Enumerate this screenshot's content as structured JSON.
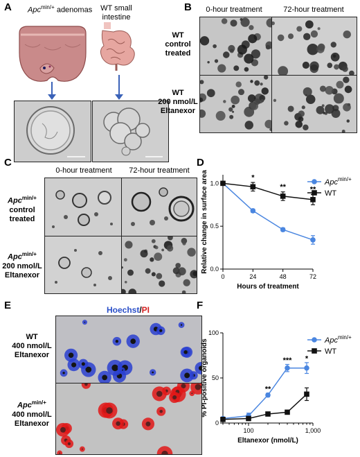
{
  "panels": {
    "A": "A",
    "B": "B",
    "C": "C",
    "D": "D",
    "E": "E",
    "F": "F"
  },
  "panelA": {
    "left_label_gene": "Apc",
    "left_label_sup": "min/+",
    "left_label_rest": " adenomas",
    "right_label_line1": "WT small",
    "right_label_line2": "intestine"
  },
  "panelB": {
    "col1": "0-hour treatment",
    "col2": "72-hour treatment",
    "row1": [
      "WT",
      "control",
      "treated"
    ],
    "row2": [
      "WT",
      "200 nmol/L",
      "Eltanexor"
    ]
  },
  "panelC": {
    "col1": "0-hour treatment",
    "col2": "72-hour treatment",
    "row1_gene": "Apc",
    "row1_sup": "min/+",
    "row1_rest": [
      "control",
      "treated"
    ],
    "row2_gene": "Apc",
    "row2_sup": "min/+",
    "row2_rest": [
      "200 nmol/L",
      "Eltanexor"
    ]
  },
  "panelE": {
    "title_a": "Hoechst",
    "title_sep": "/",
    "title_b": "PI",
    "title_a_color": "#2a4fc8",
    "title_b_color": "#d42020",
    "row1": [
      "WT",
      "400 nmol/L",
      "Eltanexor"
    ],
    "row2_gene": "Apc",
    "row2_sup": "min/+",
    "row2_rest": [
      "400 nmol/L",
      "Eltanexor"
    ]
  },
  "chart_data": [
    {
      "type": "line",
      "panel": "D",
      "xlabel": "Hours of treatment",
      "ylabel": "Relative change in surface area",
      "xticks": [
        "0",
        "24",
        "48",
        "72"
      ],
      "yticks": [
        "0.0",
        "0.5",
        "1.0"
      ],
      "xlim": [
        0,
        72
      ],
      "ylim": [
        0,
        1.1
      ],
      "legend": "top-right",
      "x": [
        0,
        24,
        48,
        72
      ],
      "series": [
        {
          "name_gene": "Apc",
          "name_sup": "min/+",
          "color": "#4a86e0",
          "marker": "circle",
          "values": [
            1.0,
            0.68,
            0.46,
            0.34
          ],
          "errors": [
            0.01,
            0.02,
            0.02,
            0.05
          ]
        },
        {
          "name": "WT",
          "color": "#111111",
          "marker": "square",
          "values": [
            1.0,
            0.96,
            0.85,
            0.81
          ],
          "errors": [
            0.01,
            0.05,
            0.05,
            0.06
          ]
        }
      ],
      "annotations": [
        {
          "x": 24,
          "y": 1.04,
          "text": "*"
        },
        {
          "x": 48,
          "y": 0.93,
          "text": "**"
        },
        {
          "x": 72,
          "y": 0.9,
          "text": "**"
        }
      ]
    },
    {
      "type": "line",
      "panel": "F",
      "xscale": "log",
      "xlabel": "Eltanexor (nmol/L)",
      "ylabel": "% PI-positive organoids",
      "xticks": [
        "100",
        "1,000"
      ],
      "yticks": [
        "0",
        "50",
        "100"
      ],
      "xlim": [
        40,
        1000
      ],
      "ylim": [
        0,
        100
      ],
      "legend": "top-right",
      "x": [
        40,
        100,
        200,
        400,
        800
      ],
      "series": [
        {
          "name_gene": "Apc",
          "name_sup": "min/+",
          "color": "#4a86e0",
          "marker": "circle",
          "values": [
            5,
            8,
            31,
            61,
            61
          ],
          "errors": [
            1,
            3,
            2,
            4,
            6
          ]
        },
        {
          "name": "WT",
          "color": "#111111",
          "marker": "square",
          "values": [
            4,
            5,
            10,
            12,
            32
          ],
          "errors": [
            1,
            2,
            1,
            1,
            7
          ]
        }
      ],
      "annotations": [
        {
          "x": 200,
          "y": 35,
          "text": "**"
        },
        {
          "x": 400,
          "y": 67,
          "text": "***"
        },
        {
          "x": 800,
          "y": 69,
          "text": "*"
        }
      ]
    }
  ]
}
